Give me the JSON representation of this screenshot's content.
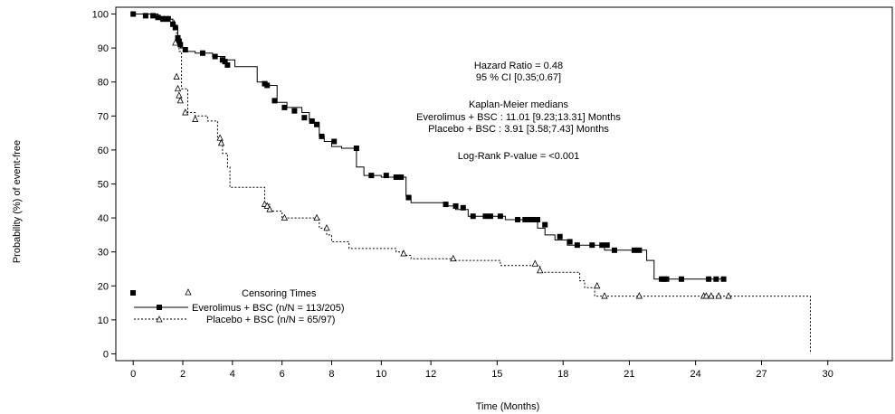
{
  "chart_data": {
    "type": "line",
    "title": "",
    "xlabel": "Time (Months)",
    "ylabel": "Probability (%) of event-free",
    "xlim": [
      -0.7,
      30.6
    ],
    "ylim": [
      -2,
      102
    ],
    "xticks": [
      0,
      2,
      4,
      6,
      8,
      10,
      12,
      15,
      18,
      21,
      24,
      27,
      30
    ],
    "xtick_positions": [
      0,
      2,
      4,
      6,
      8,
      10,
      12,
      14.67,
      17.33,
      20,
      22.67,
      25.33,
      28
    ],
    "yticks": [
      0,
      10,
      20,
      30,
      40,
      50,
      60,
      70,
      80,
      90,
      100
    ],
    "annotations": {
      "hazard_ratio": "Hazard Ratio = 0.48",
      "ci": "95 % CI [0.35;0.67]",
      "km_title": "Kaplan-Meier medians",
      "km_everolimus": "Everolimus + BSC : 11.01 [9.23;13.31]  Months",
      "km_placebo": "Placebo + BSC : 3.91 [3.58;7.43]  Months",
      "logrank": "Log-Rank P-value = <0.001"
    },
    "legend": {
      "title": "Censoring Times",
      "everolimus": "Everolimus + BSC (n/N = 113/205)",
      "placebo": "Placebo + BSC (n/N = 65/97)"
    },
    "series": [
      {
        "name": "Everolimus + BSC (n/N = 113/205)",
        "line": "solid",
        "marker": "filled-square",
        "x": [
          0,
          1.0,
          1.0,
          1.5,
          1.5,
          1.6,
          1.6,
          1.7,
          1.7,
          1.8,
          1.8,
          1.9,
          1.9,
          2.1,
          2.1,
          2.5,
          2.5,
          3.2,
          3.2,
          3.7,
          3.7,
          4.1,
          4.1,
          5.0,
          5.0,
          5.4,
          5.4,
          5.8,
          5.8,
          6.2,
          6.2,
          6.8,
          6.8,
          7.1,
          7.1,
          7.3,
          7.3,
          7.5,
          7.5,
          7.7,
          7.7,
          8.0,
          8.0,
          8.4,
          8.4,
          9.0,
          9.0,
          9.3,
          9.3,
          10.0,
          10.0,
          10.5,
          10.5,
          11.0,
          11.0,
          11.2,
          11.2,
          12.6,
          12.6,
          13.0,
          13.0,
          13.5,
          13.5,
          15.0,
          15.0,
          16.0,
          16.0,
          16.3,
          16.3,
          16.6,
          16.6,
          17.0,
          17.0,
          17.5,
          17.5,
          19.0,
          19.0,
          19.3,
          19.3,
          20.1,
          20.1,
          20.7,
          20.7,
          21.0,
          21.0,
          23.8
        ],
        "y": [
          100,
          100,
          99.3,
          99.3,
          98.5,
          98.5,
          97,
          97,
          96,
          96,
          92,
          92,
          90,
          90,
          89,
          89,
          88.5,
          88.5,
          87.5,
          87.5,
          86.5,
          86.5,
          84.5,
          84.5,
          80,
          80,
          79,
          79,
          74,
          74,
          72.5,
          72.5,
          71,
          71,
          69,
          69,
          68,
          68,
          64,
          64,
          62.5,
          62.5,
          61,
          61,
          60.5,
          60.5,
          55,
          55,
          52.5,
          52.5,
          52,
          52,
          52,
          52,
          46.5,
          46.5,
          44.5,
          44.5,
          43.5,
          43.5,
          42.5,
          42.5,
          40.5,
          40.5,
          39.5,
          39.5,
          39.5,
          39.5,
          37,
          37,
          35,
          35,
          33.5,
          33.5,
          32,
          32,
          30.5,
          30.5,
          30.5,
          30.5,
          30.5,
          30.5,
          27.5,
          27.5,
          22,
          22
        ],
        "censor_x": [
          0,
          0.5,
          0.8,
          1.0,
          1.2,
          1.4,
          1.6,
          1.7,
          1.8,
          1.85,
          1.9,
          2.1,
          2.8,
          3.3,
          3.6,
          3.7,
          3.8,
          5.3,
          5.4,
          5.7,
          6.1,
          6.5,
          6.9,
          7.2,
          7.4,
          7.6,
          8.1,
          9.0,
          9.6,
          10.2,
          10.6,
          10.8,
          11.1,
          12.6,
          13.0,
          13.3,
          13.7,
          14.2,
          14.4,
          14.8,
          15.5,
          15.8,
          15.9,
          16.1,
          16.3,
          16.6,
          17.2,
          17.6,
          17.9,
          18.5,
          18.9,
          19.1,
          19.4,
          20.2,
          20.4,
          21.3,
          21.4,
          21.5,
          22.1,
          23.2,
          23.5,
          23.8
        ],
        "censor_y": [
          100,
          99.5,
          99.5,
          99,
          98.5,
          98.5,
          97,
          96,
          93,
          92,
          91,
          89.5,
          88.5,
          87.5,
          86.5,
          86,
          85,
          79.5,
          79,
          74.5,
          72.5,
          71.5,
          69.5,
          68.5,
          67.5,
          64,
          62.5,
          60.5,
          52.5,
          52.5,
          52,
          52,
          46,
          44,
          43.5,
          43,
          40.5,
          40.5,
          40.5,
          40.5,
          39.5,
          39.5,
          39.5,
          39.5,
          39.5,
          38,
          34.5,
          33,
          32,
          32,
          32,
          32,
          30.5,
          30.5,
          30.5,
          22,
          22,
          22,
          22,
          22,
          22,
          22
        ]
      },
      {
        "name": "Placebo + BSC (n/N = 65/97)",
        "line": "dotted",
        "marker": "open-triangle",
        "x": [
          0,
          1.0,
          1.0,
          1.5,
          1.5,
          1.65,
          1.65,
          1.75,
          1.75,
          1.85,
          1.85,
          1.95,
          1.95,
          2.2,
          2.2,
          2.5,
          2.5,
          3.0,
          3.0,
          3.4,
          3.4,
          3.6,
          3.6,
          3.8,
          3.8,
          3.9,
          3.9,
          5.3,
          5.3,
          5.5,
          5.5,
          6.0,
          6.0,
          7.5,
          7.5,
          7.8,
          7.8,
          8.0,
          8.0,
          8.7,
          8.7,
          10.6,
          10.6,
          10.9,
          10.9,
          11.2,
          11.2,
          13.0,
          13.0,
          14.8,
          14.8,
          16.0,
          16.0,
          16.4,
          16.4,
          18.0,
          18.0,
          18.2,
          18.2,
          18.6,
          18.6,
          18.9,
          18.9,
          27.3,
          27.3
        ],
        "y": [
          100,
          100,
          99.3,
          99.3,
          98.5,
          98.5,
          96.5,
          96.5,
          92,
          92,
          89,
          89,
          78,
          78,
          71,
          71,
          70,
          70,
          68.5,
          68.5,
          63,
          63,
          59,
          59,
          55,
          55,
          49,
          49,
          44,
          44,
          42,
          42,
          40,
          40,
          37,
          37,
          35,
          35,
          33,
          33,
          31,
          31,
          30,
          30,
          29,
          29,
          28,
          28,
          27.5,
          27.5,
          26,
          26,
          26,
          26,
          24,
          24,
          21.5,
          21.5,
          19.5,
          19.5,
          17,
          17,
          17,
          17,
          0
        ],
        "censor_x": [
          1.7,
          1.75,
          1.8,
          1.85,
          1.9,
          2.1,
          2.5,
          3.5,
          3.55,
          5.3,
          5.4,
          5.5,
          6.1,
          7.4,
          7.8,
          10.9,
          12.9,
          16.2,
          16.4,
          18.7,
          19.0,
          20.4,
          23.0,
          23.1,
          23.3,
          23.6,
          24.0
        ],
        "censor_y": [
          91.5,
          81.5,
          78,
          76,
          74.5,
          71,
          69,
          63.5,
          62,
          44,
          43.5,
          42.5,
          40,
          40,
          37,
          29.5,
          28,
          26.5,
          24.5,
          20,
          17,
          17,
          17,
          17,
          17,
          17,
          17
        ]
      }
    ]
  }
}
